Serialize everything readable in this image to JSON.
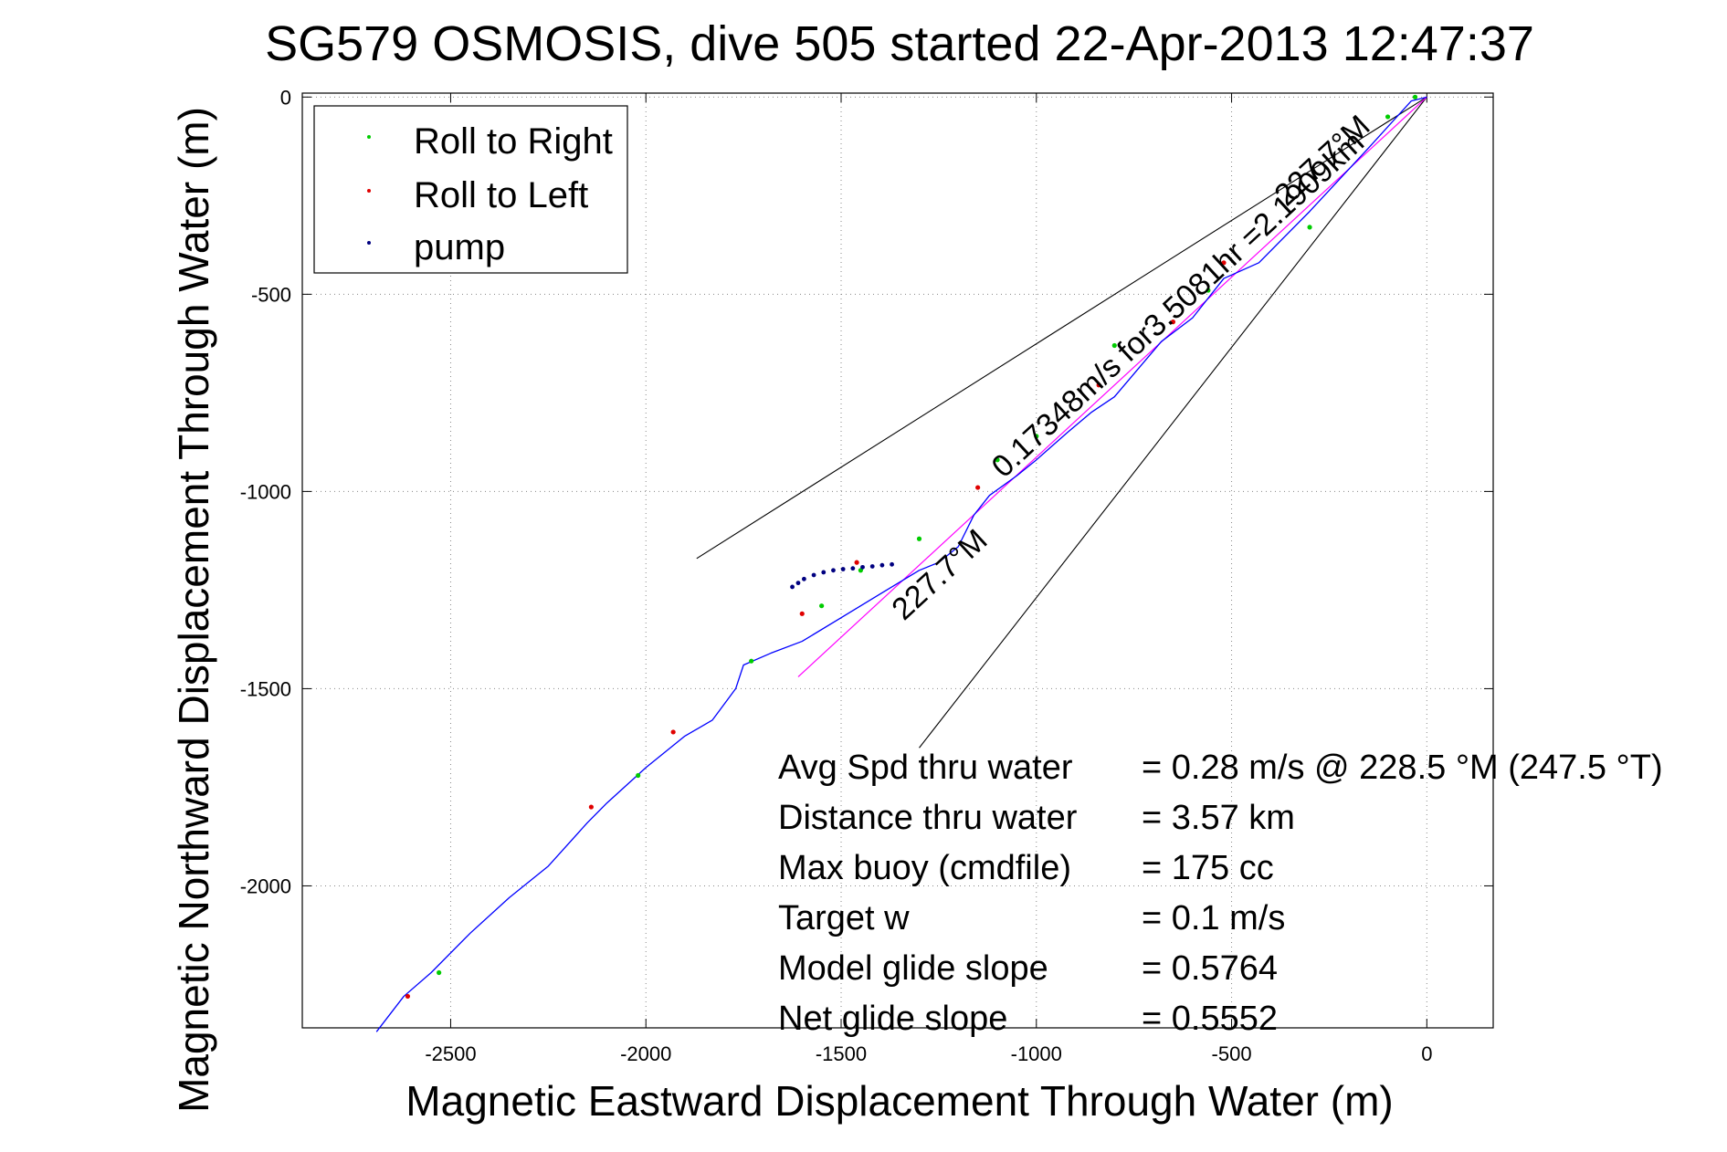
{
  "chart_data": {
    "type": "line",
    "title": "SG579 OSMOSIS, dive 505 started 22-Apr-2013 12:47:37",
    "xlabel": "Magnetic Eastward Displacement Through Water (m)",
    "ylabel": "Magnetic Northward Displacement Through Water (m)",
    "xlim": [
      -2880,
      170
    ],
    "ylim": [
      -2360,
      10
    ],
    "xticks": [
      -2500,
      -2000,
      -1500,
      -1000,
      -500,
      0
    ],
    "yticks": [
      0,
      -500,
      -1000,
      -1500,
      -2000
    ],
    "grid": true,
    "legend_position": "top-left",
    "legend": [
      {
        "label": "Roll to Right",
        "color": "#00cc00"
      },
      {
        "label": "Roll to Left",
        "color": "#e00000"
      },
      {
        "label": "pump",
        "color": "#000080"
      }
    ],
    "track": {
      "name": "glider track",
      "color": "#0000ff",
      "x": [
        0,
        -40,
        -150,
        -300,
        -430,
        -520,
        -600,
        -680,
        -740,
        -800,
        -860,
        -920,
        -1000,
        -1050,
        -1120,
        -1160,
        -1200,
        -1250,
        -1300,
        -1400,
        -1500,
        -1600,
        -1680,
        -1750,
        -1770,
        -1830,
        -1900,
        -2000,
        -2100,
        -2150,
        -2250,
        -2350,
        -2450,
        -2550,
        -2620,
        -2690
      ],
      "y": [
        0,
        -10,
        -130,
        -290,
        -420,
        -460,
        -560,
        -620,
        -690,
        -760,
        -800,
        -850,
        -920,
        -960,
        -1010,
        -1060,
        -1140,
        -1180,
        -1200,
        -1260,
        -1320,
        -1380,
        -1410,
        -1440,
        -1500,
        -1580,
        -1620,
        -1700,
        -1790,
        -1840,
        -1950,
        -2030,
        -2120,
        -2220,
        -2280,
        -2370
      ]
    },
    "roll_right_x": [
      -30,
      -100,
      -300,
      -560,
      -800,
      -1000,
      -1100,
      -1300,
      -1450,
      -1550,
      -1730,
      -2020,
      -2530
    ],
    "roll_right_y": [
      0,
      -50,
      -330,
      -490,
      -630,
      -860,
      -920,
      -1120,
      -1200,
      -1290,
      -1430,
      -1720,
      -2220
    ],
    "roll_left_x": [
      -520,
      -650,
      -840,
      -1150,
      -1460,
      -1600,
      -1930,
      -2140,
      -2610
    ],
    "roll_left_y": [
      -420,
      -570,
      -730,
      -990,
      -1180,
      -1310,
      -1610,
      -1800,
      -2280
    ],
    "pump_x": [
      -1370,
      -1395,
      -1420,
      -1445,
      -1470,
      -1495,
      -1520,
      -1545,
      -1570,
      -1595,
      -1610,
      -1625
    ],
    "pump_y": [
      -1185,
      -1187,
      -1190,
      -1192,
      -1195,
      -1197,
      -1200,
      -1205,
      -1212,
      -1222,
      -1232,
      -1242
    ],
    "net_line": {
      "color": "#ff00ff",
      "x": [
        0,
        -1610
      ],
      "y": [
        0,
        -1470
      ]
    },
    "wedge_lines": [
      {
        "x": [
          -1870,
          0,
          -1300
        ],
        "y": [
          -1170,
          0,
          -1650
        ]
      }
    ],
    "rotated_annotations": [
      {
        "text": "227.7°M",
        "x": -1230,
        "y": -1230
      },
      {
        "text": "227.7°M",
        "x": -250,
        "y": -180
      },
      {
        "text": "0.17348m/s for3.5081hr =2.1909km",
        "x": -620,
        "y": -545
      }
    ],
    "summary": [
      {
        "label": "Avg Spd thru water",
        "value": "=  0.28 m/s @ 228.5 °M (247.5 °T)"
      },
      {
        "label": "Distance thru water",
        "value": "=  3.57 km"
      },
      {
        "label": "Max buoy (cmdfile)",
        "value": "= 175 cc"
      },
      {
        "label": "Target w",
        "value": "= 0.1 m/s"
      },
      {
        "label": "Model glide slope",
        "value": "= 0.5764"
      },
      {
        "label": "Net glide slope",
        "value": "= 0.5552"
      }
    ]
  }
}
